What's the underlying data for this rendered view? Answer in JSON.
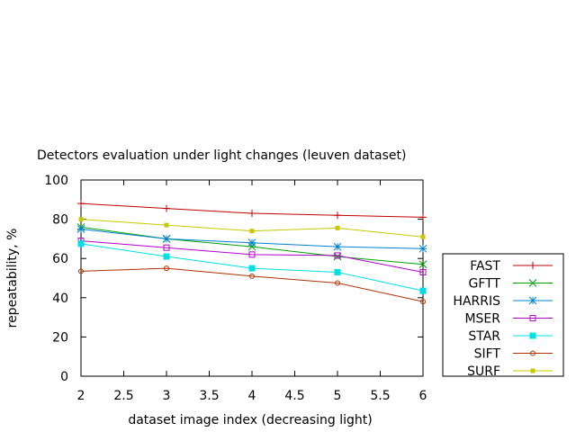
{
  "chart_data": {
    "type": "line",
    "title": "Detectors evaluation under light changes (leuven dataset)",
    "xlabel": "dataset image index (decreasing light)",
    "ylabel": "repeatability, %",
    "xlim": [
      2,
      6
    ],
    "ylim": [
      0,
      100
    ],
    "xticks": [
      2,
      2.5,
      3,
      3.5,
      4,
      4.5,
      5,
      5.5,
      6
    ],
    "yticks": [
      0,
      20,
      40,
      60,
      80,
      100
    ],
    "xtick_labels": [
      "2",
      "2.5",
      "3",
      "3.5",
      "4",
      "4.5",
      "5",
      "5.5",
      "6"
    ],
    "ytick_labels": [
      "0",
      "20",
      "40",
      "60",
      "80",
      "100"
    ],
    "x": [
      2,
      3,
      4,
      5,
      6
    ],
    "grid": false,
    "legend_position": "bottom-right outside",
    "series": [
      {
        "name": "FAST",
        "color": "#c00000",
        "marker": "plus",
        "values": [
          88,
          85.5,
          83,
          82,
          81
        ]
      },
      {
        "name": "GFTT",
        "color": "#00a000",
        "marker": "cross",
        "values": [
          76,
          70,
          66,
          61,
          57
        ]
      },
      {
        "name": "HARRIS",
        "color": "#0080d0",
        "marker": "star",
        "values": [
          75,
          70,
          68,
          66,
          65
        ]
      },
      {
        "name": "MSER",
        "color": "#b000c8",
        "marker": "open-square",
        "values": [
          69,
          65.5,
          62,
          61.5,
          53
        ]
      },
      {
        "name": "STAR",
        "color": "#00e0e0",
        "marker": "filled-square",
        "values": [
          67.5,
          61,
          55,
          53,
          43.5
        ]
      },
      {
        "name": "SIFT",
        "color": "#b03000",
        "marker": "open-circle",
        "values": [
          53.5,
          55,
          51,
          47.5,
          38
        ]
      },
      {
        "name": "SURF",
        "color": "#c8c800",
        "marker": "filled-square-small",
        "values": [
          80,
          77,
          74,
          75.5,
          71
        ]
      }
    ]
  }
}
